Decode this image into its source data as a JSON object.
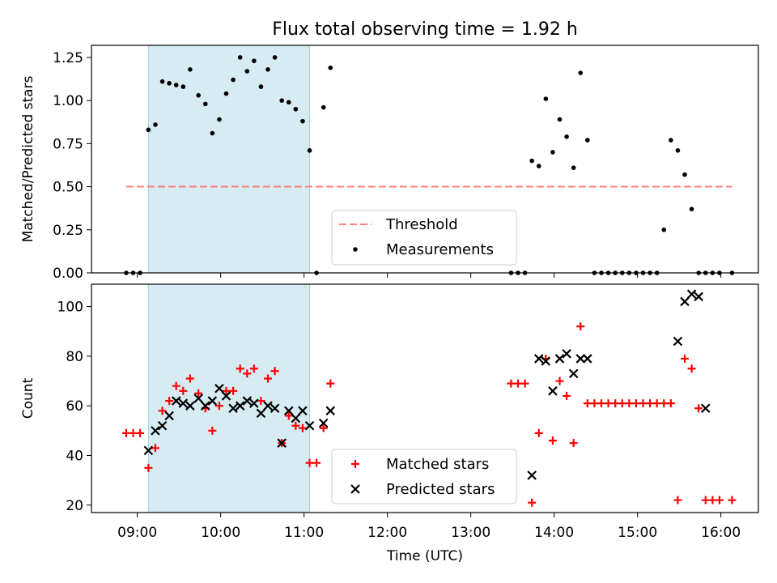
{
  "title": "Flux total observing time = 1.92 h",
  "colors": {
    "shade": "#add8e6",
    "threshold": "#ff7f7f",
    "matched": "#ff0000",
    "predicted": "#000000"
  },
  "chart_data": [
    {
      "type": "scatter",
      "panel": "top",
      "ylabel": "Matched/Predicted stars",
      "xlabel": "",
      "ylim": [
        0,
        1.32
      ],
      "yticks": [
        "0.00",
        "0.25",
        "0.50",
        "0.75",
        "1.00",
        "1.25"
      ],
      "ytick_values": [
        0,
        0.25,
        0.5,
        0.75,
        1.0,
        1.25
      ],
      "shaded_interval": [
        "09:08",
        "11:04"
      ],
      "legend": {
        "placement": "lower center",
        "entries": [
          "Threshold",
          "Measurements"
        ]
      },
      "threshold": {
        "name": "Threshold",
        "value": 0.5,
        "x_start": "08:52",
        "x_end": "16:08"
      },
      "series": [
        {
          "name": "Measurements",
          "x": [
            "08:52",
            "08:57",
            "09:02",
            "09:08",
            "09:13",
            "09:18",
            "09:23",
            "09:28",
            "09:33",
            "09:38",
            "09:44",
            "09:49",
            "09:54",
            "09:59",
            "10:04",
            "10:09",
            "10:14",
            "10:19",
            "10:24",
            "10:29",
            "10:34",
            "10:39",
            "10:44",
            "10:49",
            "10:54",
            "10:59",
            "11:04",
            "11:09",
            "11:14",
            "11:19",
            "13:29",
            "13:34",
            "13:39",
            "13:44",
            "13:49",
            "13:54",
            "13:59",
            "14:04",
            "14:09",
            "14:14",
            "14:19",
            "14:24",
            "14:29",
            "14:34",
            "14:39",
            "14:44",
            "14:49",
            "14:54",
            "14:59",
            "15:04",
            "15:09",
            "15:14",
            "15:19",
            "15:24",
            "15:29",
            "15:34",
            "15:39",
            "15:44",
            "15:49",
            "15:54",
            "15:59",
            "16:08"
          ],
          "y": [
            0,
            0,
            0,
            0.83,
            0.86,
            1.11,
            1.1,
            1.09,
            1.08,
            1.18,
            1.03,
            0.98,
            0.81,
            0.89,
            1.04,
            1.12,
            1.25,
            1.17,
            1.23,
            1.08,
            1.18,
            1.25,
            1.0,
            0.99,
            0.95,
            0.88,
            0.71,
            0,
            0.96,
            1.19,
            0,
            0,
            0,
            0.65,
            0.62,
            1.01,
            0.7,
            0.89,
            0.79,
            0.61,
            1.16,
            0.77,
            0,
            0,
            0,
            0,
            0,
            0,
            0,
            0,
            0,
            0,
            0.25,
            0.77,
            0.71,
            0.57,
            0.37,
            0,
            0,
            0,
            0,
            0
          ]
        }
      ]
    },
    {
      "type": "scatter",
      "panel": "bottom",
      "ylabel": "Count",
      "xlabel": "Time (UTC)",
      "ylim": [
        17,
        109
      ],
      "yticks": [
        "20",
        "40",
        "60",
        "80",
        "100"
      ],
      "ytick_values": [
        20,
        40,
        60,
        80,
        100
      ],
      "xticks": [
        "09:00",
        "10:00",
        "11:00",
        "12:00",
        "13:00",
        "14:00",
        "15:00",
        "16:00"
      ],
      "xtick_hours": [
        9,
        10,
        11,
        12,
        13,
        14,
        15,
        16
      ],
      "xlim_hours": [
        8.45,
        16.45
      ],
      "shaded_interval": [
        "09:08",
        "11:04"
      ],
      "legend": {
        "placement": "lower center",
        "entries": [
          "Matched stars",
          "Predicted stars"
        ]
      },
      "series": [
        {
          "name": "Matched stars",
          "x": [
            "08:52",
            "08:57",
            "09:02",
            "09:08",
            "09:13",
            "09:18",
            "09:23",
            "09:28",
            "09:33",
            "09:38",
            "09:44",
            "09:49",
            "09:54",
            "09:59",
            "10:04",
            "10:09",
            "10:14",
            "10:19",
            "10:24",
            "10:29",
            "10:34",
            "10:39",
            "10:44",
            "10:49",
            "10:54",
            "10:59",
            "11:04",
            "11:09",
            "11:14",
            "11:19",
            "13:29",
            "13:34",
            "13:39",
            "13:44",
            "13:49",
            "13:54",
            "13:59",
            "14:04",
            "14:09",
            "14:14",
            "14:19",
            "14:24",
            "14:29",
            "14:34",
            "14:39",
            "14:44",
            "14:49",
            "14:54",
            "14:59",
            "15:04",
            "15:09",
            "15:14",
            "15:19",
            "15:24",
            "15:29",
            "15:34",
            "15:39",
            "15:44",
            "15:49",
            "15:54",
            "15:59",
            "16:08"
          ],
          "y": [
            49,
            49,
            49,
            35,
            43,
            58,
            62,
            68,
            66,
            71,
            65,
            59,
            50,
            60,
            66,
            66,
            75,
            73,
            75,
            62,
            71,
            74,
            45,
            56,
            52,
            51,
            37,
            37,
            51,
            69,
            69,
            69,
            69,
            21,
            49,
            79,
            46,
            70,
            64,
            45,
            92,
            61,
            61,
            61,
            61,
            61,
            61,
            61,
            61,
            61,
            61,
            61,
            61,
            61,
            22,
            79,
            75,
            59,
            22,
            22,
            22,
            22
          ]
        },
        {
          "name": "Predicted stars",
          "x": [
            "09:08",
            "09:13",
            "09:18",
            "09:23",
            "09:28",
            "09:33",
            "09:38",
            "09:44",
            "09:49",
            "09:54",
            "09:59",
            "10:04",
            "10:09",
            "10:14",
            "10:19",
            "10:24",
            "10:29",
            "10:34",
            "10:39",
            "10:44",
            "10:49",
            "10:54",
            "10:59",
            "11:04",
            "11:14",
            "11:19",
            "13:44",
            "13:49",
            "13:54",
            "13:59",
            "14:04",
            "14:09",
            "14:14",
            "14:19",
            "14:24",
            "15:29",
            "15:34",
            "15:39",
            "15:44",
            "15:49"
          ],
          "y": [
            42,
            50,
            52,
            56,
            62,
            61,
            60,
            63,
            60,
            62,
            67,
            64,
            59,
            60,
            62,
            61,
            57,
            60,
            59,
            45,
            58,
            55,
            58,
            52,
            53,
            58,
            32,
            79,
            78,
            66,
            79,
            81,
            73,
            79,
            79,
            86,
            102,
            105,
            104,
            59
          ]
        }
      ]
    }
  ]
}
